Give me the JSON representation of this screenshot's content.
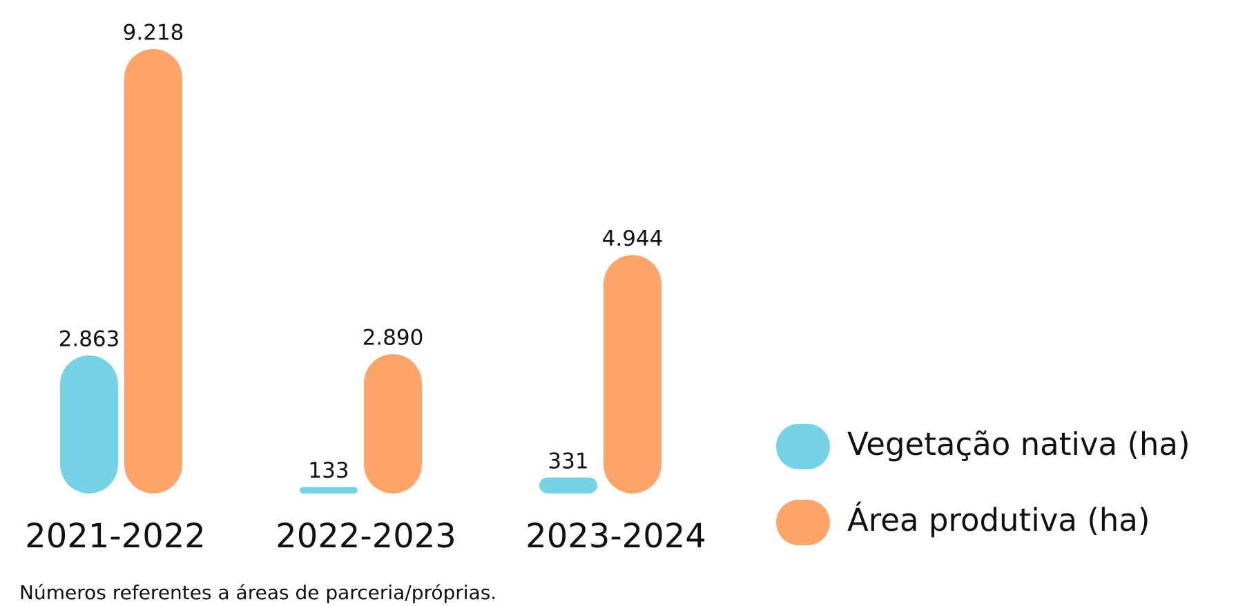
{
  "chart_data": {
    "type": "bar",
    "categories": [
      "2021-2022",
      "2022-2023",
      "2023-2024"
    ],
    "series": [
      {
        "name": "Vegetação nativa (ha)",
        "color": "#76d3e6",
        "values": [
          2863,
          133,
          331
        ],
        "value_labels": [
          "2.863",
          "133",
          "331"
        ]
      },
      {
        "name": "Área produtiva (ha)",
        "color": "#ffa46b",
        "values": [
          9218,
          2890,
          4944
        ],
        "value_labels": [
          "9.218",
          "2.890",
          "4.944"
        ]
      }
    ],
    "note": "Números referentes a áreas de parceria/próprias."
  }
}
